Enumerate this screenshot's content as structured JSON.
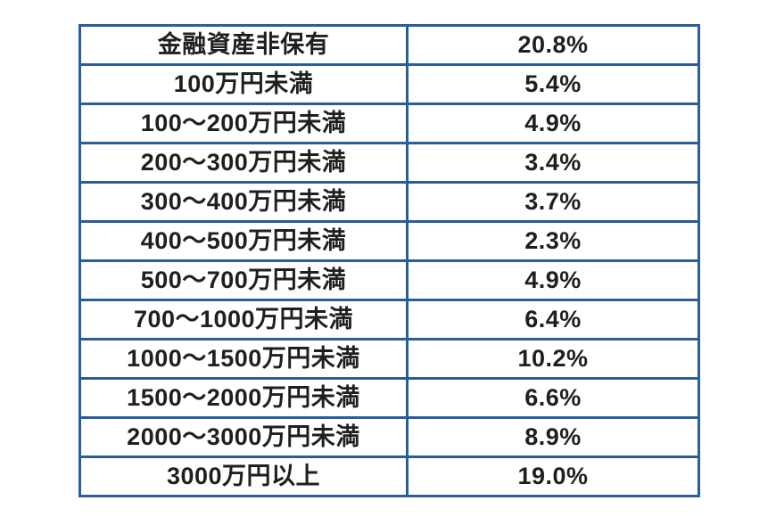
{
  "colors": {
    "border": "#2b5d9b",
    "text": "#1f1f1f",
    "cell_bg": "#ffffff",
    "page_bg": "#ffffff"
  },
  "chart_data": {
    "type": "table",
    "title": "",
    "legend": null,
    "rows": [
      {
        "label": "金融資産非保有",
        "value": "20.8%"
      },
      {
        "label": "100万円未満",
        "value": "5.4%"
      },
      {
        "label": "100〜200万円未満",
        "value": "4.9%"
      },
      {
        "label": "200〜300万円未満",
        "value": "3.4%"
      },
      {
        "label": "300〜400万円未満",
        "value": "3.7%"
      },
      {
        "label": "400〜500万円未満",
        "value": "2.3%"
      },
      {
        "label": "500〜700万円未満",
        "value": "4.9%"
      },
      {
        "label": "700〜1000万円未満",
        "value": "6.4%"
      },
      {
        "label": "1000〜1500万円未満",
        "value": "10.2%"
      },
      {
        "label": "1500〜2000万円未満",
        "value": "6.6%"
      },
      {
        "label": "2000〜3000万円未満",
        "value": "8.9%"
      },
      {
        "label": "3000万円以上",
        "value": "19.0%"
      }
    ]
  }
}
